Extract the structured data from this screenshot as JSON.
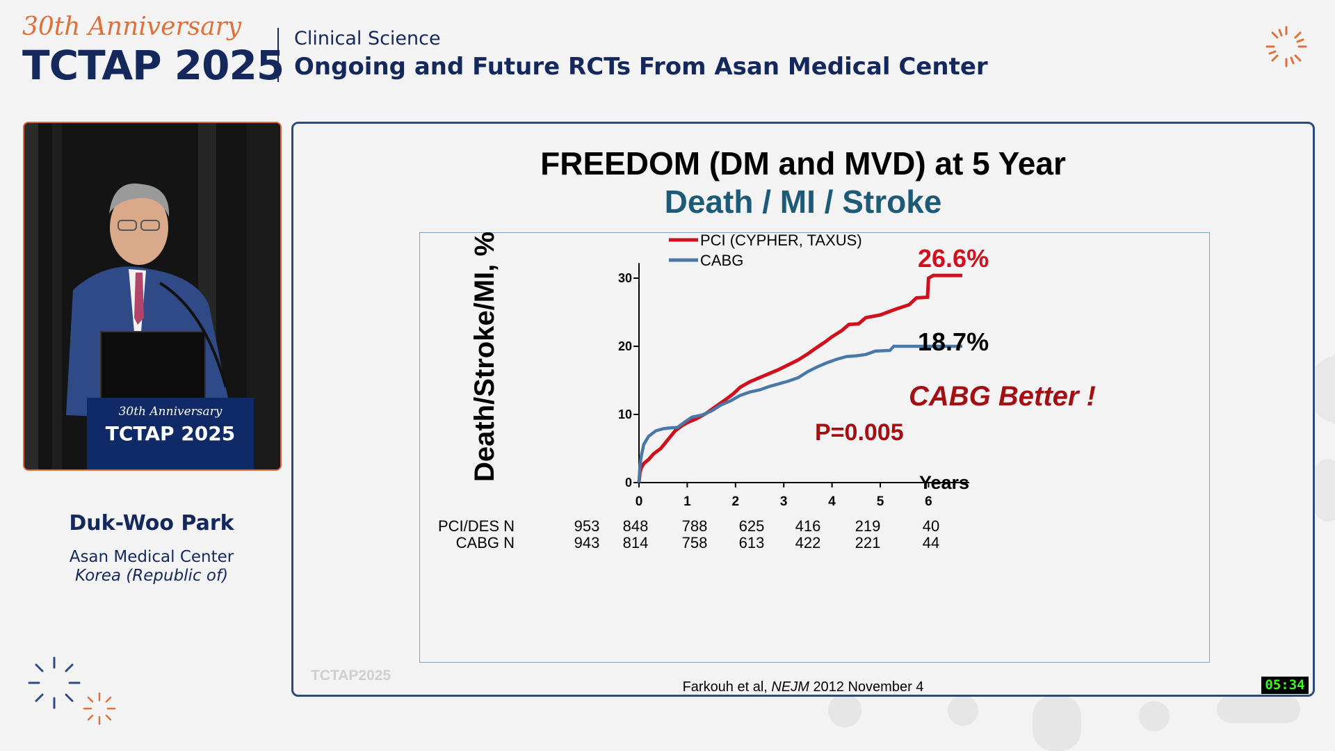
{
  "header": {
    "anniversary": "30th Anniversary",
    "brand": "TCTAP 2025",
    "category": "Clinical Science",
    "session": "Ongoing and Future RCTs From Asan Medical Center"
  },
  "speaker": {
    "name": "Duk-Woo Park",
    "institution": "Asan Medical Center",
    "country": "Korea (Republic of)"
  },
  "video": {
    "podium_anniversary": "30th Anniversary",
    "podium_brand": "TCTAP 2025"
  },
  "slide": {
    "title": "FREEDOM (DM and MVD) at 5 Year",
    "subtitle": "Death / MI / Stroke",
    "citation_author": "Farkouh et al,",
    "citation_journal": "NEJM",
    "citation_date": "2012 November 4",
    "watermark": "TCTAP2025"
  },
  "timer": "05:34",
  "colors": {
    "navy": "#14285c",
    "accent_orange": "#e0703a",
    "pci_red": "#d0101c",
    "cabg_blue": "#4a78a6",
    "subtitle_teal": "#1d5a78",
    "annotation_red": "#a30f12"
  },
  "chart_data": {
    "type": "line",
    "ylabel": "Death/Stroke/MI, %",
    "xlabel": "Years",
    "x_ticks": [
      "0",
      "1",
      "2",
      "3",
      "4",
      "5",
      "6"
    ],
    "y_ticks": [
      "0",
      "10",
      "20",
      "30"
    ],
    "xlim": [
      0,
      6.7
    ],
    "ylim": [
      0,
      31
    ],
    "legend_position": "top-left",
    "series": [
      {
        "name": "PCI (CYPHER, TAXUS)",
        "color": "#d0101c",
        "points": [
          [
            0,
            0
          ],
          [
            0.02,
            1.5
          ],
          [
            0.05,
            2.2
          ],
          [
            0.1,
            2.8
          ],
          [
            0.2,
            3.4
          ],
          [
            0.3,
            4.2
          ],
          [
            0.45,
            5.0
          ],
          [
            0.6,
            6.3
          ],
          [
            0.75,
            7.6
          ],
          [
            0.9,
            8.4
          ],
          [
            1.0,
            8.8
          ],
          [
            1.2,
            9.4
          ],
          [
            1.4,
            10.2
          ],
          [
            1.6,
            11.2
          ],
          [
            1.8,
            12.2
          ],
          [
            1.95,
            13.0
          ],
          [
            2.1,
            14.0
          ],
          [
            2.3,
            14.8
          ],
          [
            2.5,
            15.4
          ],
          [
            2.7,
            16.0
          ],
          [
            2.9,
            16.6
          ],
          [
            3.1,
            17.3
          ],
          [
            3.3,
            18.0
          ],
          [
            3.5,
            18.9
          ],
          [
            3.7,
            19.9
          ],
          [
            3.85,
            20.6
          ],
          [
            4.0,
            21.4
          ],
          [
            4.2,
            22.3
          ],
          [
            4.35,
            23.2
          ],
          [
            4.55,
            23.3
          ],
          [
            4.7,
            24.2
          ],
          [
            5.0,
            24.6
          ],
          [
            5.3,
            25.4
          ],
          [
            5.6,
            26.1
          ],
          [
            5.75,
            27.1
          ],
          [
            5.98,
            27.2
          ],
          [
            6.0,
            30.0
          ],
          [
            6.1,
            30.4
          ],
          [
            6.7,
            30.4
          ]
        ]
      },
      {
        "name": "CABG",
        "color": "#4a78a6",
        "points": [
          [
            0,
            0
          ],
          [
            0.02,
            2.5
          ],
          [
            0.05,
            4.0
          ],
          [
            0.1,
            5.6
          ],
          [
            0.2,
            6.8
          ],
          [
            0.35,
            7.6
          ],
          [
            0.5,
            7.9
          ],
          [
            0.6,
            8.0
          ],
          [
            0.8,
            8.1
          ],
          [
            0.95,
            8.9
          ],
          [
            1.1,
            9.6
          ],
          [
            1.3,
            9.9
          ],
          [
            1.5,
            10.5
          ],
          [
            1.7,
            11.4
          ],
          [
            1.9,
            12.0
          ],
          [
            2.1,
            12.8
          ],
          [
            2.3,
            13.3
          ],
          [
            2.5,
            13.6
          ],
          [
            2.7,
            14.1
          ],
          [
            2.9,
            14.5
          ],
          [
            3.1,
            14.9
          ],
          [
            3.3,
            15.4
          ],
          [
            3.5,
            16.3
          ],
          [
            3.7,
            17.0
          ],
          [
            3.9,
            17.6
          ],
          [
            4.1,
            18.1
          ],
          [
            4.3,
            18.5
          ],
          [
            4.5,
            18.6
          ],
          [
            4.7,
            18.8
          ],
          [
            4.9,
            19.3
          ],
          [
            5.2,
            19.4
          ],
          [
            5.28,
            20.0
          ],
          [
            6.7,
            20.0
          ]
        ]
      }
    ],
    "annotations": {
      "pci_end": "26.6%",
      "cabg_end": "18.7%",
      "p_value": "P=0.005",
      "finding": "CABG Better !"
    },
    "risk_table": {
      "columns": [
        "0",
        "1",
        "2",
        "3",
        "4",
        "5",
        "6"
      ],
      "rows": [
        {
          "label": "PCI/DES N",
          "values": [
            "953",
            "848",
            "788",
            "625",
            "416",
            "219",
            "40"
          ]
        },
        {
          "label": "CABG N",
          "values": [
            "943",
            "814",
            "758",
            "613",
            "422",
            "221",
            "44"
          ]
        }
      ]
    }
  }
}
